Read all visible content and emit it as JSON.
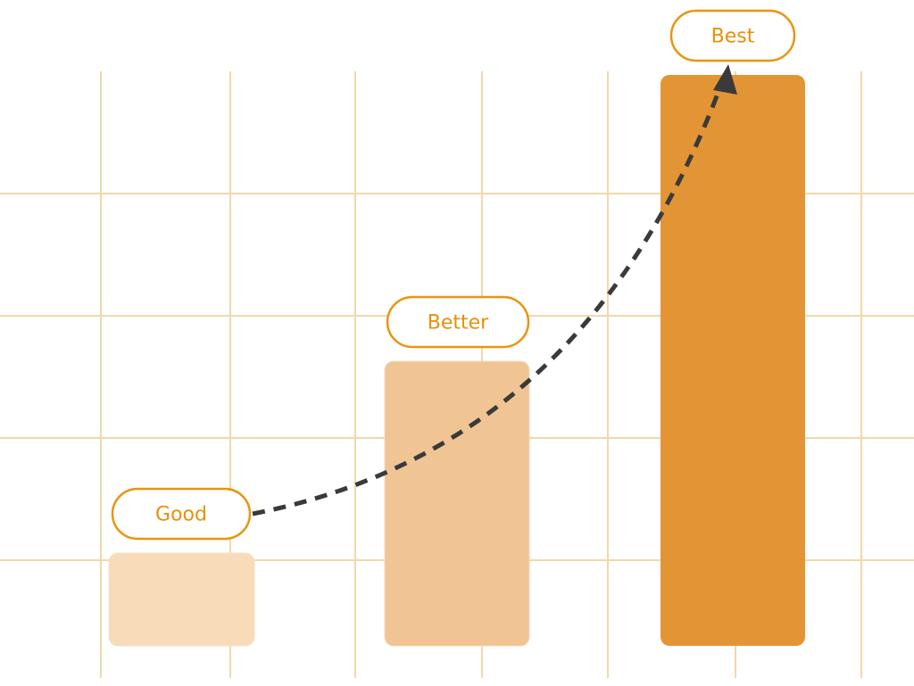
{
  "nodes": [
    {
      "label": "Good"
    },
    {
      "label": "Better"
    },
    {
      "label": "Best"
    }
  ]
}
